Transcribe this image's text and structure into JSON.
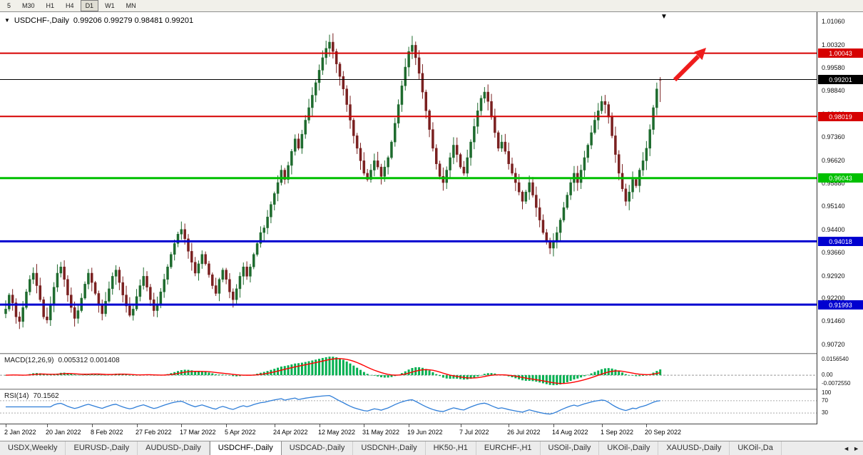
{
  "toolbar": {
    "timeframes": [
      "5",
      "M30",
      "H1",
      "H4",
      "D1",
      "W1",
      "MN"
    ],
    "active_timeframe": "D1"
  },
  "chart": {
    "info_symbol": "USDCHF-,Daily",
    "info_ohlc": "0.99206 0.99279 0.98481 0.99201",
    "info_dropdown_icon": "▼",
    "shift_marker_icon": "▼",
    "axis_labels": [
      "1.01060",
      "1.00320",
      "0.99580",
      "0.98840",
      "0.98100",
      "0.97360",
      "0.96620",
      "0.95880",
      "0.95140",
      "0.94400",
      "0.93660",
      "0.92920",
      "0.92200",
      "0.91460",
      "0.90720"
    ],
    "hlines": [
      {
        "price": 1.00043,
        "label": "1.00043",
        "color": "#d60000",
        "width": 2
      },
      {
        "price": 0.98019,
        "label": "0.98019",
        "color": "#d60000",
        "width": 2
      },
      {
        "price": 0.96043,
        "label": "0.96043",
        "color": "#00c000",
        "width": 3
      },
      {
        "price": 0.94018,
        "label": "0.94018",
        "color": "#0000d0",
        "width": 3
      },
      {
        "price": 0.91993,
        "label": "0.91993",
        "color": "#0000d0",
        "width": 3
      }
    ],
    "current_price_line": {
      "price": 0.99201,
      "label": "0.99201",
      "color": "#000000"
    },
    "annotation": {
      "type": "up-arrow",
      "color": "#ef1c1c"
    },
    "colors": {
      "up": "#1e6b2e",
      "down": "#7a2020",
      "background": "#ffffff"
    }
  },
  "chart_data": {
    "type": "candlestick",
    "symbol": "USDCHF",
    "period": "Daily",
    "x_range": [
      "2 Jan 2022",
      "20 Sep 2022"
    ],
    "y_range": [
      0.9048,
      1.0136
    ],
    "first_open": 0.917,
    "last_candle": [
      0.99206,
      0.99279,
      0.98481,
      0.99201
    ],
    "closes": [
      0.9185,
      0.923,
      0.9205,
      0.916,
      0.9145,
      0.919,
      0.924,
      0.928,
      0.93,
      0.926,
      0.9215,
      0.916,
      0.915,
      0.92,
      0.9255,
      0.93,
      0.932,
      0.928,
      0.923,
      0.919,
      0.9155,
      0.918,
      0.922,
      0.9265,
      0.93,
      0.927,
      0.9235,
      0.92,
      0.917,
      0.921,
      0.925,
      0.929,
      0.931,
      0.927,
      0.923,
      0.9195,
      0.9165,
      0.9185,
      0.9225,
      0.926,
      0.929,
      0.9255,
      0.9215,
      0.918,
      0.92,
      0.924,
      0.928,
      0.932,
      0.936,
      0.9395,
      0.9425,
      0.944,
      0.941,
      0.937,
      0.9335,
      0.93,
      0.933,
      0.936,
      0.933,
      0.9295,
      0.926,
      0.9235,
      0.928,
      0.931,
      0.928,
      0.924,
      0.9215,
      0.925,
      0.929,
      0.932,
      0.929,
      0.932,
      0.936,
      0.9395,
      0.943,
      0.9445,
      0.948,
      0.952,
      0.9555,
      0.959,
      0.963,
      0.96,
      0.9645,
      0.969,
      0.973,
      0.97,
      0.9745,
      0.979,
      0.983,
      0.987,
      0.991,
      0.995,
      0.999,
      1.002,
      1.004,
      1.001,
      0.997,
      0.993,
      0.989,
      0.984,
      0.979,
      0.974,
      0.97,
      0.966,
      0.962,
      0.96,
      0.963,
      0.966,
      0.964,
      0.961,
      0.964,
      0.967,
      0.972,
      0.978,
      0.984,
      0.99,
      0.996,
      1.001,
      1.003,
      0.999,
      0.994,
      0.988,
      0.982,
      0.976,
      0.97,
      0.965,
      0.961,
      0.959,
      0.963,
      0.967,
      0.971,
      0.968,
      0.964,
      0.962,
      0.967,
      0.972,
      0.977,
      0.982,
      0.986,
      0.988,
      0.985,
      0.98,
      0.975,
      0.97,
      0.972,
      0.969,
      0.965,
      0.962,
      0.959,
      0.956,
      0.953,
      0.956,
      0.959,
      0.955,
      0.951,
      0.947,
      0.943,
      0.94,
      0.938,
      0.94,
      0.943,
      0.947,
      0.951,
      0.955,
      0.959,
      0.962,
      0.959,
      0.963,
      0.967,
      0.971,
      0.975,
      0.979,
      0.982,
      0.985,
      0.984,
      0.98,
      0.974,
      0.968,
      0.962,
      0.957,
      0.953,
      0.956,
      0.96,
      0.958,
      0.963,
      0.966,
      0.97,
      0.976,
      0.983,
      0.989,
      0.992
    ],
    "date_labels": [
      {
        "label": "2 Jan 2022",
        "index": 0
      },
      {
        "label": "20 Jan 2022",
        "index": 12
      },
      {
        "label": "8 Feb 2022",
        "index": 25
      },
      {
        "label": "27 Feb 2022",
        "index": 38
      },
      {
        "label": "17 Mar 2022",
        "index": 51
      },
      {
        "label": "5 Apr 2022",
        "index": 64
      },
      {
        "label": "24 Apr 2022",
        "index": 78
      },
      {
        "label": "12 May 2022",
        "index": 91
      },
      {
        "label": "31 May 2022",
        "index": 104
      },
      {
        "label": "19 Jun 2022",
        "index": 117
      },
      {
        "label": "7 Jul 2022",
        "index": 132
      },
      {
        "label": "26 Jul 2022",
        "index": 146
      },
      {
        "label": "14 Aug 2022",
        "index": 159
      },
      {
        "label": "1 Sep 2022",
        "index": 173
      },
      {
        "label": "20 Sep 2022",
        "index": 186
      }
    ]
  },
  "macd": {
    "label": "MACD(12,26,9)",
    "values": "0.005312 0.001408",
    "params": {
      "fast": 12,
      "slow": 26,
      "signal": 9
    },
    "axis_labels": [
      "0.0156540",
      "0.00",
      "-0.0072550"
    ],
    "histogram_color": "#00b050",
    "signal_color": "#ff0000"
  },
  "rsi": {
    "label": "RSI(14)",
    "value": "70.1562",
    "period": 14,
    "levels": [
      70,
      30
    ],
    "axis_labels": [
      "100",
      "70",
      "30"
    ],
    "line_color": "#2f7ed8"
  },
  "tabs": {
    "items": [
      "USDX,Weekly",
      "EURUSD-,Daily",
      "AUDUSD-,Daily",
      "USDCHF-,Daily",
      "USDCAD-,Daily",
      "USDCNH-,Daily",
      "HK50-,H1",
      "EURCHF-,H1",
      "USOil-,Daily",
      "UKOil-,Daily",
      "XAUUSD-,Daily",
      "UKOil-,Da"
    ],
    "active": "USDCHF-,Daily",
    "scroll_left_icon": "◄",
    "scroll_right_icon": "►"
  }
}
